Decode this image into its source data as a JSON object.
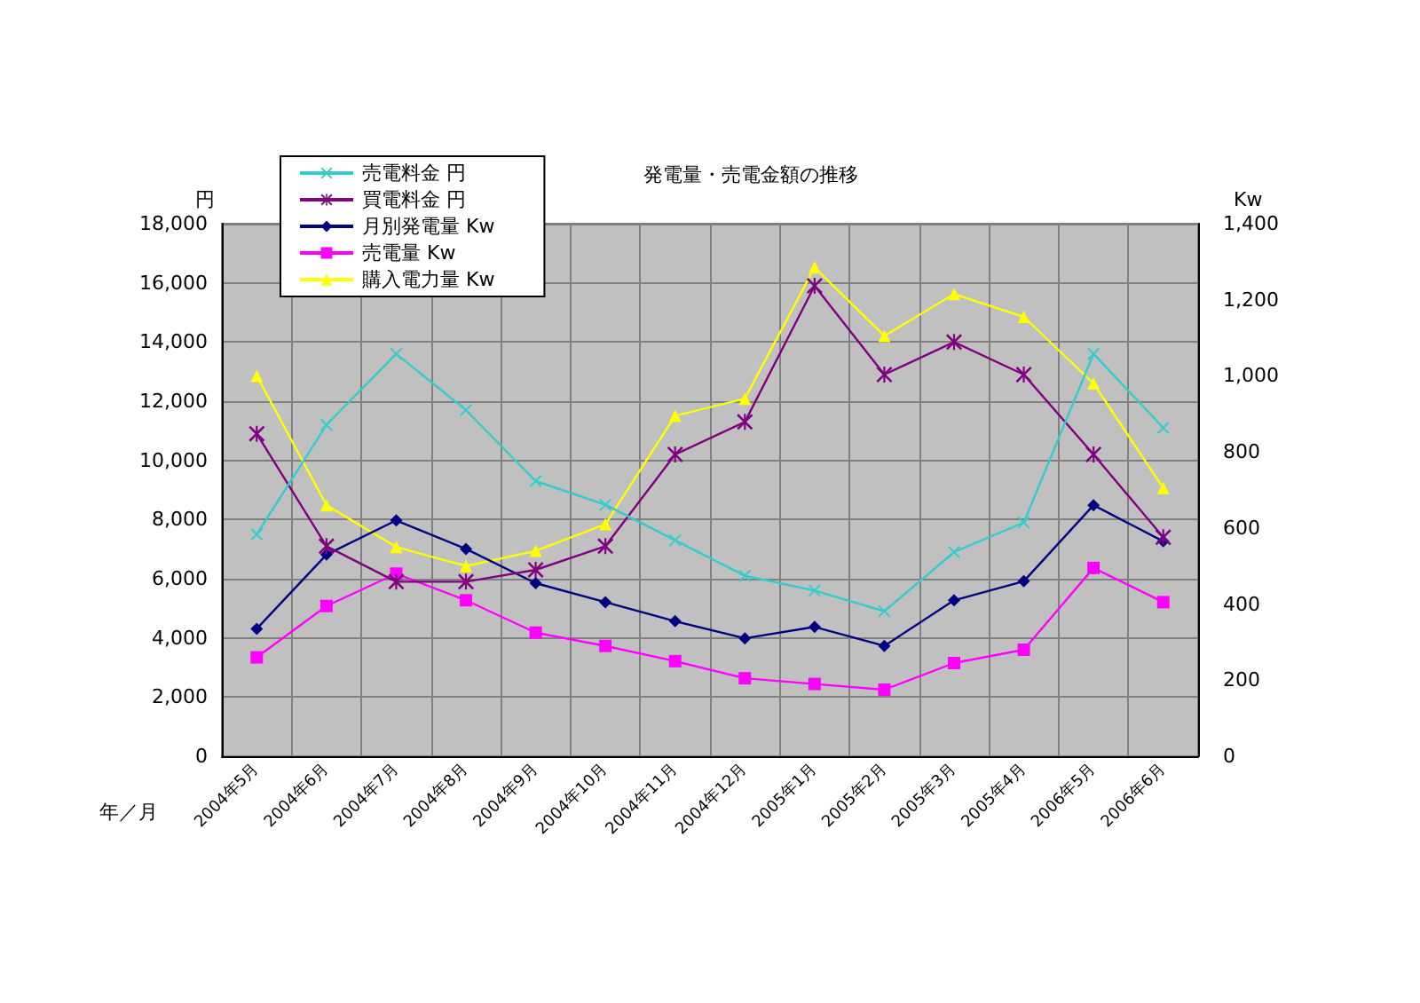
{
  "chart_data": {
    "type": "line",
    "title": "発電量・売電金額の推移",
    "xlabel": "年／月",
    "ylabel": "円",
    "y2label": "Kw",
    "categories": [
      "2004年5月",
      "2004年6月",
      "2004年7月",
      "2004年8月",
      "2004年9月",
      "2004年10月",
      "2004年11月",
      "2004年12月",
      "2005年1月",
      "2005年2月",
      "2005年3月",
      "2005年4月",
      "2006年5月",
      "2006年6月"
    ],
    "series": [
      {
        "name": "売電料金 円",
        "color": "#33cccc",
        "marker": "cross",
        "values": [
          7500,
          11200,
          13600,
          11700,
          9300,
          8500,
          7300,
          6100,
          5600,
          4900,
          6900,
          7900,
          13600,
          11100
        ]
      },
      {
        "name": "買電料金 円",
        "color": "#800080",
        "marker": "star",
        "values": [
          10900,
          7100,
          5900,
          5900,
          6300,
          7100,
          10200,
          11300,
          15900,
          12900,
          14000,
          12900,
          10200,
          7400
        ]
      },
      {
        "name": "月別発電量 Kw",
        "color": "#000080",
        "marker": "diamond",
        "axis": "y2",
        "values": [
          335,
          530,
          620,
          545,
          455,
          405,
          355,
          310,
          340,
          290,
          410,
          460,
          660,
          565
        ]
      },
      {
        "name": "売電量 Kw",
        "color": "#ff00ff",
        "marker": "square",
        "axis": "y2",
        "values": [
          260,
          395,
          480,
          410,
          325,
          290,
          250,
          205,
          190,
          175,
          245,
          280,
          495,
          405
        ]
      },
      {
        "name": "購入電力量 Kw",
        "color": "#ffff00",
        "marker": "triangle",
        "axis": "y2",
        "values": [
          1000,
          660,
          550,
          500,
          540,
          610,
          895,
          940,
          1285,
          1105,
          1215,
          1155,
          980,
          705
        ]
      }
    ],
    "ylim": [
      0,
      18000
    ],
    "yticks": [
      0,
      {
        "value": 2000,
        "label": "2,000"
      },
      {
        "value": 4000,
        "label": "4,000"
      },
      {
        "value": 6000,
        "label": "6,000"
      },
      {
        "value": 8000,
        "label": "8,000"
      },
      {
        "value": 10000,
        "label": "10,000"
      },
      {
        "value": 12000,
        "label": "12,000"
      },
      {
        "value": 14000,
        "label": "14,000"
      },
      {
        "value": 16000,
        "label": "16,000"
      },
      {
        "value": 18000,
        "label": "18,000"
      }
    ],
    "y2lim": [
      0,
      1400
    ],
    "y2ticks": [
      0,
      200,
      400,
      600,
      800,
      {
        "value": 1000,
        "label": "1,000"
      },
      {
        "value": 1200,
        "label": "1,200"
      },
      {
        "value": 1400,
        "label": "1,400"
      }
    ],
    "grid": true,
    "legend": "top left",
    "line_style": "solid"
  }
}
